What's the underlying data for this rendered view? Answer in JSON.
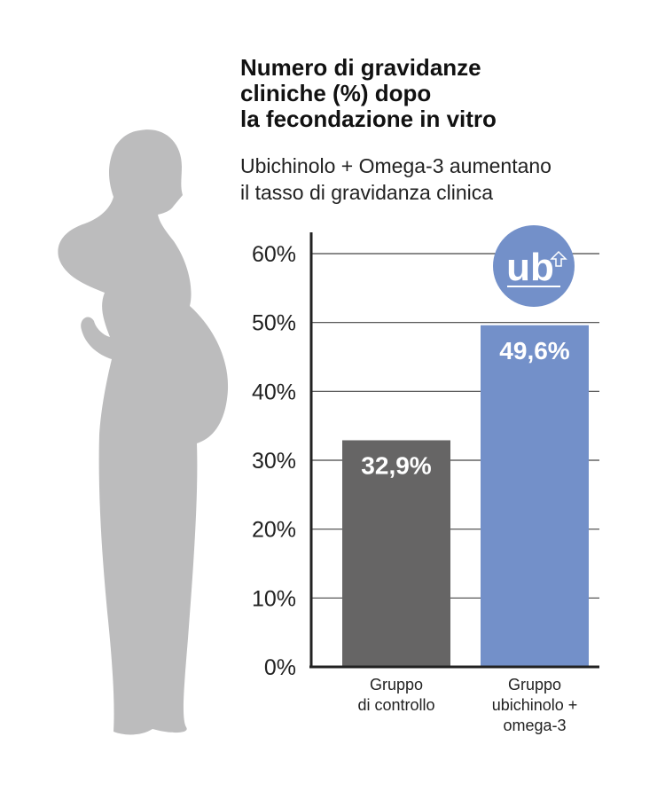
{
  "title_lines": [
    "Numero di gravidanze",
    "cliniche (%) dopo",
    "la fecondazione in vitro"
  ],
  "subtitle_lines": [
    "Ubichinolo + Omega-3 aumentano",
    "il tasso di gravidanza clinica"
  ],
  "logo_text": "ub",
  "colors": {
    "control_bar": "#666565",
    "treatment_bar": "#7390c9",
    "logo": "#7390c9",
    "silhouette": "#bcbcbd",
    "axis": "#222222",
    "grid": "#444444"
  },
  "chart_data": {
    "type": "bar",
    "categories": [
      [
        "Gruppo",
        "di controllo"
      ],
      [
        "Gruppo",
        "ubichinolo +",
        "omega-3"
      ]
    ],
    "values": [
      32.9,
      49.6
    ],
    "value_labels": [
      "32,9%",
      "49,6%"
    ],
    "ylim": [
      0,
      60
    ],
    "yticks": [
      0,
      10,
      20,
      30,
      40,
      50,
      60
    ],
    "ytick_labels": [
      "0%",
      "10%",
      "20%",
      "30%",
      "40%",
      "50%",
      "60%"
    ],
    "grid": true
  }
}
